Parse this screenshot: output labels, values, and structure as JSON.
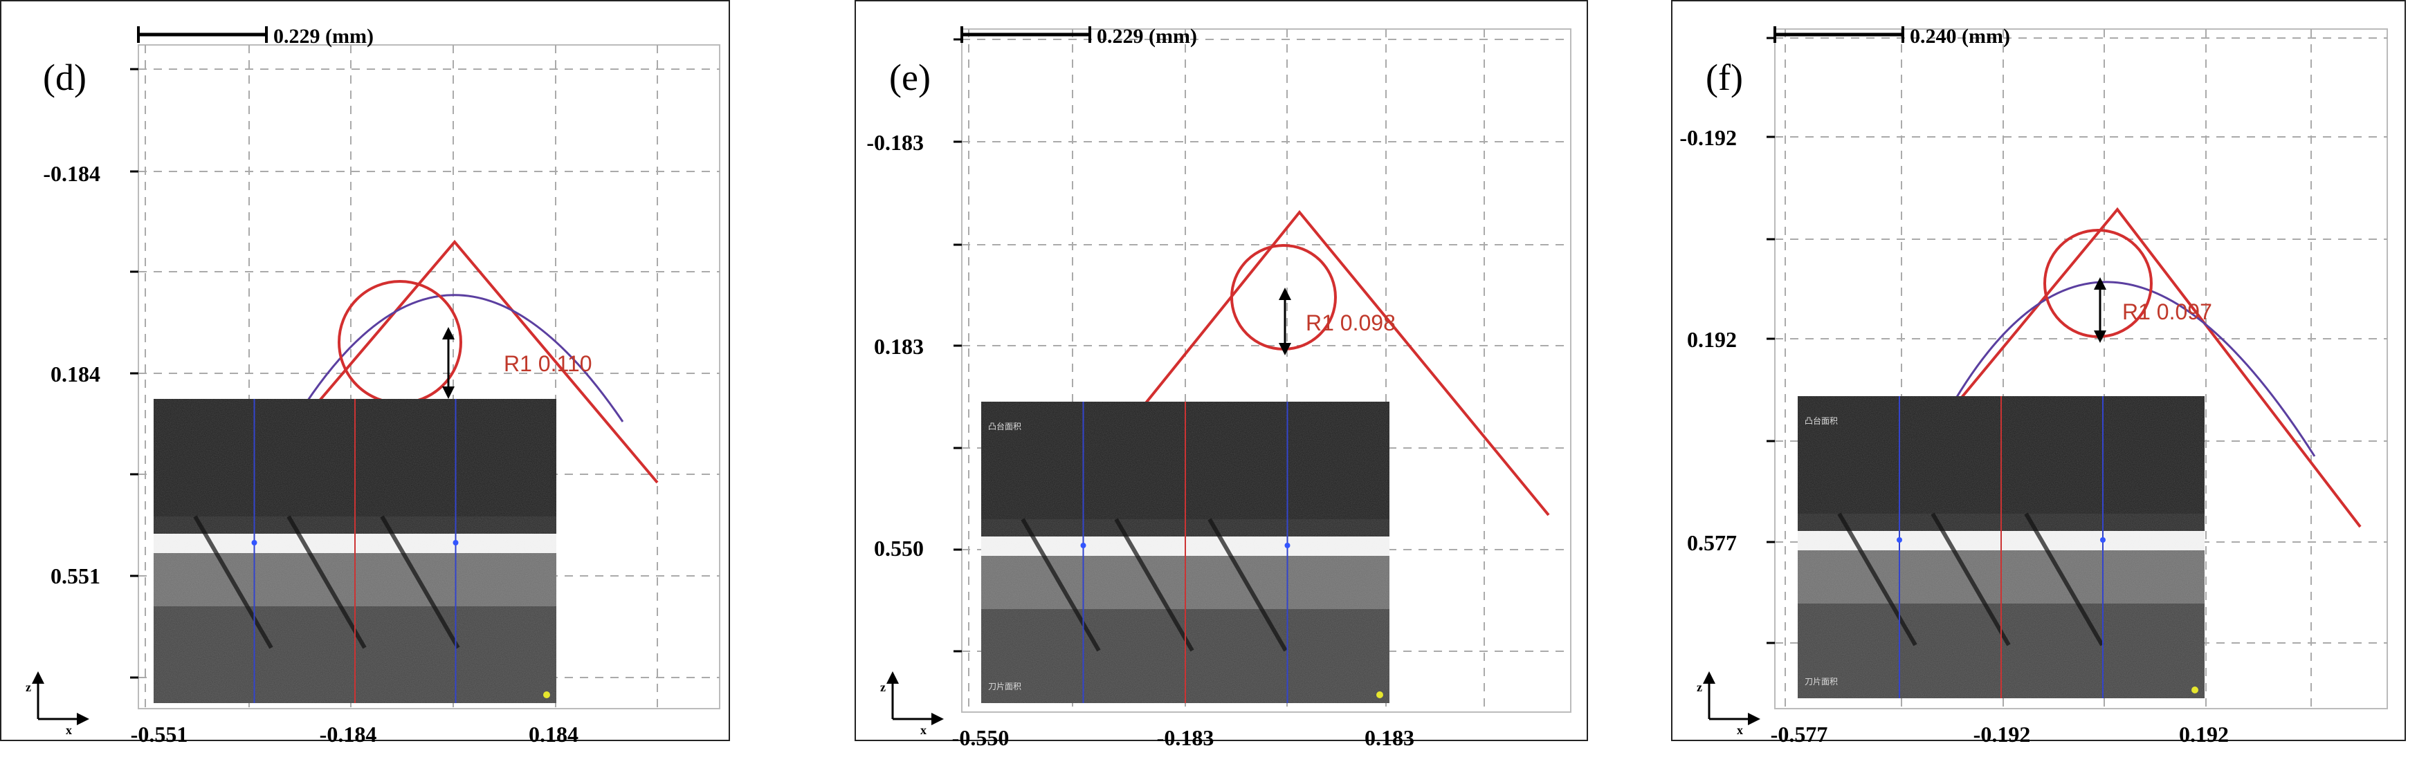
{
  "panels": [
    {
      "letter": "(d)",
      "scale": "0.229 (mm)",
      "yticks": [
        "-0.184",
        "0.184",
        "0.551"
      ],
      "xticks": [
        "-0.551",
        "-0.184",
        "0.184"
      ],
      "radius_label": "R1 0.110",
      "inset_labels": [
        "",
        ""
      ]
    },
    {
      "letter": "(e)",
      "scale": "0.229 (mm)",
      "yticks": [
        "-0.183",
        "0.183",
        "0.550"
      ],
      "xticks": [
        "-0.550",
        "-0.183",
        "0.183"
      ],
      "radius_label": "R1 0.098",
      "inset_labels": [
        "凸台面积",
        "刀片面积"
      ]
    },
    {
      "letter": "(f)",
      "scale": "0.240 (mm)",
      "yticks": [
        "-0.192",
        "0.192",
        "0.577"
      ],
      "xticks": [
        "-0.577",
        "-0.192",
        "0.192"
      ],
      "radius_label": "R1 0.097",
      "inset_labels": [
        "凸台面积",
        "刀片面积"
      ]
    }
  ],
  "axis_glyphs": {
    "z": "z",
    "x": "x"
  },
  "chart_data": [
    {
      "type": "line",
      "title": "(d)",
      "scale_bar": "0.229 (mm)",
      "x_ticks": [
        -0.551,
        -0.184,
        0.184
      ],
      "y_ticks": [
        -0.184,
        0.184,
        0.551
      ],
      "series": [
        {
          "x": [
            -0.33,
            0.01,
            0.38
          ],
          "y": [
            0.42,
            -0.06,
            0.4
          ]
        }
      ],
      "annotation": "R1 0.110",
      "grid": true
    },
    {
      "type": "line",
      "title": "(e)",
      "scale_bar": "0.229 (mm)",
      "x_ticks": [
        -0.55,
        -0.183,
        0.183
      ],
      "y_ticks": [
        -0.183,
        0.183,
        0.55
      ],
      "series": [
        {
          "x": [
            -0.3,
            0.03,
            0.46
          ],
          "y": [
            0.45,
            -0.05,
            0.48
          ]
        }
      ],
      "annotation": "R1 0.098",
      "grid": true
    },
    {
      "type": "line",
      "title": "(f)",
      "scale_bar": "0.240 (mm)",
      "x_ticks": [
        -0.577,
        -0.192,
        0.192
      ],
      "y_ticks": [
        -0.192,
        0.192,
        0.577
      ],
      "series": [
        {
          "x": [
            -0.3,
            0.03,
            0.46
          ],
          "y": [
            0.45,
            -0.06,
            0.48
          ]
        }
      ],
      "annotation": "R1 0.097",
      "grid": true
    }
  ]
}
